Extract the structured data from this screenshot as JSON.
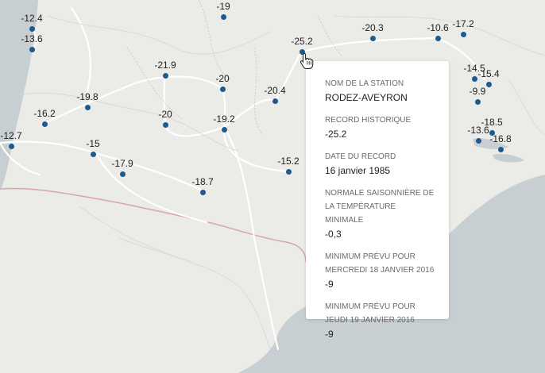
{
  "map": {
    "colors": {
      "land": "#ebebe8",
      "sea": "#c8cfd3",
      "border": "#d9a5a5",
      "roads": "#ffffff",
      "dots": "#1d5a8e"
    },
    "stations": [
      {
        "label": "-12.4"
      },
      {
        "label": "-13.6"
      },
      {
        "label": "-19"
      },
      {
        "label": "-25.2"
      },
      {
        "label": "-20.3"
      },
      {
        "label": "-10.6"
      },
      {
        "label": "-17.2"
      },
      {
        "label": "-21.9"
      },
      {
        "label": "-20"
      },
      {
        "label": "-20.4"
      },
      {
        "label": "-14.5"
      },
      {
        "label": "-15.4"
      },
      {
        "label": "-9.9"
      },
      {
        "label": "-19.8"
      },
      {
        "label": "-16.2"
      },
      {
        "label": "-20"
      },
      {
        "label": "-19.2"
      },
      {
        "label": "-13.6"
      },
      {
        "label": "-18.5"
      },
      {
        "label": "-16.8"
      },
      {
        "label": "-12.7"
      },
      {
        "label": "-15"
      },
      {
        "label": "-15.2"
      },
      {
        "label": "-17.9"
      },
      {
        "label": "-18.7"
      }
    ]
  },
  "tooltip": {
    "station_key": "NOM DE LA STATION",
    "station_value": "RODEZ-AVEYRON",
    "record_key": "RECORD HISTORIQUE",
    "record_value": "-25.2",
    "date_key": "DATE DU RECORD",
    "date_value": "16 janvier 1985",
    "normal_key_1": "NORMALE SAISONNIÈRE DE",
    "normal_key_2": "LA TEMPÉRATURE",
    "normal_key_3": "MINIMALE",
    "normal_value": "-0,3",
    "wed_key_1": "MINIMUM PRÉVU POUR",
    "wed_key_2": "MERCREDI 18 JANVIER 2016",
    "wed_value": "-9",
    "thu_key_1": "MINIMUM PRÉVU POUR",
    "thu_key_2": "JEUDI 19 JANVIER 2016",
    "thu_value": "-9"
  }
}
